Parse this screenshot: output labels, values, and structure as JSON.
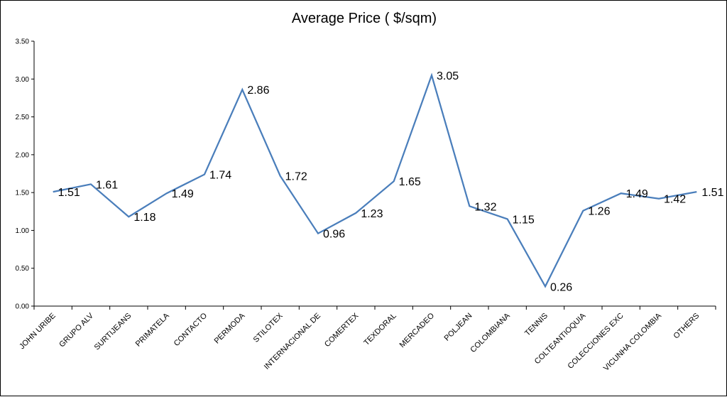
{
  "chart_data": {
    "type": "line",
    "title": "Average Price ( $/sqm)",
    "xlabel": "",
    "ylabel": "",
    "ylim": [
      0,
      3.5
    ],
    "yticks": [
      "0.00",
      "0.50",
      "1.00",
      "1.50",
      "2.00",
      "2.50",
      "3.00",
      "3.50"
    ],
    "grid": false,
    "legend": "none",
    "categories": [
      "JOHN URIBE",
      "GRUPO ALV",
      "SURTIJEANS",
      "PRIMATELA",
      "CONTACTO",
      "PERMODA",
      "STILOTEX",
      "INTERNACIONAL DE",
      "COMERTEX",
      "TEXDORAL",
      "MERCADEO",
      "POLJEAN",
      "COLOMBIANA",
      "TENNIS",
      "COLTEANTIOQUIA",
      "COLECCIONES EXC",
      "VICUNHA COLOMBIA",
      "OTHERS"
    ],
    "values": [
      1.51,
      1.61,
      1.18,
      1.49,
      1.74,
      2.86,
      1.72,
      0.96,
      1.23,
      1.65,
      3.05,
      1.32,
      1.15,
      0.26,
      1.26,
      1.49,
      1.42,
      1.51
    ],
    "value_labels": [
      "1.51",
      "1.61",
      "1.18",
      "1.49",
      "1.74",
      "2.86",
      "1.72",
      "0.96",
      "1.23",
      "1.65",
      "3.05",
      "1.32",
      "1.15",
      "0.26",
      "1.26",
      "1.49",
      "1.42",
      "1.51"
    ],
    "line_color": "#4a7ebb"
  }
}
